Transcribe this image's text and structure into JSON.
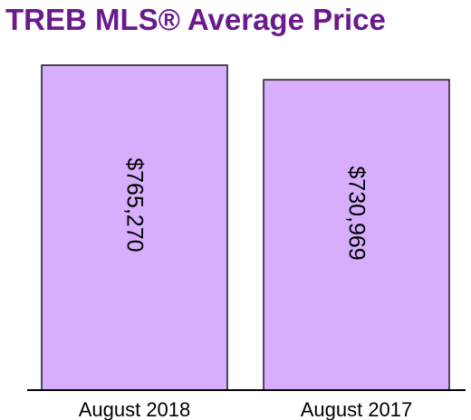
{
  "colors": {
    "title": "#6a1a8c",
    "bar_fill": "#d6aefb",
    "bar_stroke": "#1a1a1a",
    "axis": "#000000"
  },
  "chart_data": {
    "type": "bar",
    "title": "TREB MLS® Average Price",
    "categories": [
      "August 2018",
      "August 2017"
    ],
    "values": [
      765270,
      730969
    ],
    "value_labels": [
      "$765,270",
      "$730,969"
    ],
    "xlabel": "",
    "ylabel": "",
    "ylim": [
      0,
      765270
    ],
    "grid": false,
    "legend": "none"
  }
}
